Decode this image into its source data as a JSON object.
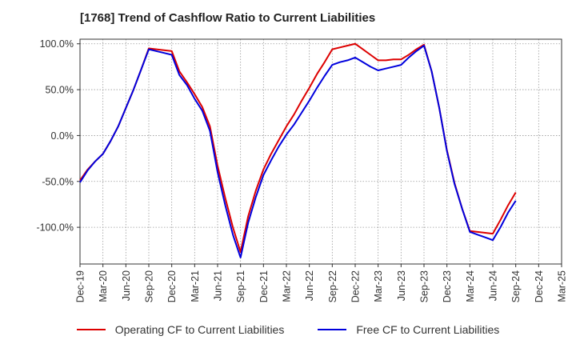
{
  "title": "[1768]  Trend of Cashflow Ratio to Current Liabilities",
  "legend": {
    "operating": "Operating CF to Current Liabilities",
    "free": "Free CF to Current Liabilities"
  },
  "colors": {
    "operating": "#dd0000",
    "free": "#0000dd",
    "grid": "#999999"
  },
  "chart_data": {
    "type": "line",
    "title": "[1768]  Trend of Cashflow Ratio to Current Liabilities",
    "xlabel": "",
    "ylabel": "",
    "x_ticks": [
      "Dec-19",
      "Mar-20",
      "Jun-20",
      "Sep-20",
      "Dec-20",
      "Mar-21",
      "Jun-21",
      "Sep-21",
      "Dec-21",
      "Mar-22",
      "Jun-22",
      "Sep-22",
      "Dec-22",
      "Mar-23",
      "Jun-23",
      "Sep-23",
      "Dec-23",
      "Mar-24",
      "Jun-24",
      "Sep-24",
      "Dec-24",
      "Mar-25"
    ],
    "y_ticks": [
      100,
      50,
      0,
      -50,
      -100
    ],
    "y_tick_labels": [
      "100.0%",
      "50.0%",
      "0.0%",
      "-50.0%",
      "-100.0%"
    ],
    "ylim": [
      -140,
      105
    ],
    "grid": true,
    "legend_position": "bottom",
    "x_points": [
      "Dec-19",
      "Jan-20",
      "Feb-20",
      "Mar-20",
      "Apr-20",
      "May-20",
      "Jun-20",
      "Jul-20",
      "Aug-20",
      "Sep-20",
      "Oct-20",
      "Nov-20",
      "Dec-20",
      "Jan-21",
      "Feb-21",
      "Mar-21",
      "Apr-21",
      "May-21",
      "Jun-21",
      "Jul-21",
      "Aug-21",
      "Sep-21",
      "Oct-21",
      "Nov-21",
      "Dec-21",
      "Jan-22",
      "Feb-22",
      "Mar-22",
      "Apr-22",
      "May-22",
      "Jun-22",
      "Jul-22",
      "Aug-22",
      "Sep-22",
      "Oct-22",
      "Nov-22",
      "Dec-22",
      "Jan-23",
      "Feb-23",
      "Mar-23",
      "Apr-23",
      "May-23",
      "Jun-23",
      "Jul-23",
      "Aug-23",
      "Sep-23",
      "Oct-23",
      "Nov-23",
      "Dec-23",
      "Jan-24",
      "Feb-24",
      "Mar-24",
      "Apr-24",
      "May-24",
      "Jun-24",
      "Jul-24",
      "Aug-24",
      "Sep-24"
    ],
    "series": [
      {
        "name": "Operating CF to Current Liabilities",
        "values": [
          -49,
          -37,
          -28,
          -20,
          -6,
          10,
          30,
          50,
          72,
          95,
          94,
          93,
          92,
          70,
          58,
          45,
          31,
          10,
          -33,
          -68,
          -100,
          -127,
          -88,
          -60,
          -37,
          -20,
          -5,
          10,
          23,
          38,
          52,
          67,
          80,
          94,
          96,
          98,
          100,
          94,
          88,
          82,
          82,
          83,
          83,
          88,
          94,
          99,
          70,
          30,
          -16,
          -52,
          -80,
          -104,
          -105,
          -106,
          -107,
          -92,
          -76,
          -62
        ]
      },
      {
        "name": "Free CF to Current Liabilities",
        "values": [
          -51,
          -38,
          -28,
          -20,
          -6,
          10,
          30,
          50,
          72,
          94,
          92,
          90,
          88,
          66,
          55,
          40,
          27,
          5,
          -40,
          -76,
          -108,
          -133,
          -95,
          -67,
          -43,
          -27,
          -12,
          1,
          12,
          25,
          38,
          52,
          65,
          77,
          80,
          82,
          85,
          80,
          75,
          71,
          73,
          75,
          77,
          85,
          92,
          98,
          70,
          30,
          -17,
          -53,
          -80,
          -105,
          -108,
          -111,
          -114,
          -100,
          -84,
          -71
        ]
      }
    ]
  }
}
